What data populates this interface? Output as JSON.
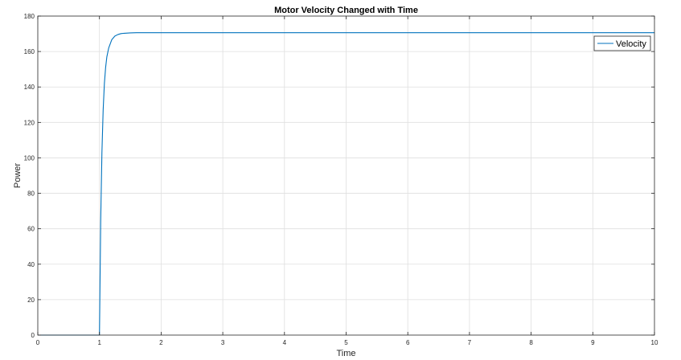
{
  "chart_data": {
    "type": "line",
    "title": "Motor Velocity Changed with Time",
    "xlabel": "Time",
    "ylabel": "Power",
    "xlim": [
      0,
      10
    ],
    "ylim": [
      0,
      180
    ],
    "xticks": [
      0,
      1,
      2,
      3,
      4,
      5,
      6,
      7,
      8,
      9,
      10
    ],
    "yticks": [
      0,
      20,
      40,
      60,
      80,
      100,
      120,
      140,
      160,
      180
    ],
    "grid": true,
    "legend_position": "top-right",
    "series": [
      {
        "name": "Velocity",
        "color": "#0072BD",
        "x": [
          0,
          1,
          1.02,
          1.04,
          1.06,
          1.08,
          1.1,
          1.12,
          1.15,
          1.2,
          1.25,
          1.3,
          1.35,
          1.4,
          1.5,
          1.6,
          1.8,
          2,
          3,
          4,
          5,
          6,
          7,
          8,
          9,
          10
        ],
        "y": [
          0,
          0,
          64,
          103,
          127,
          142,
          151,
          157,
          162,
          166.7,
          168.7,
          169.6,
          170.1,
          170.3,
          170.5,
          170.6,
          170.6,
          170.6,
          170.6,
          170.6,
          170.6,
          170.6,
          170.6,
          170.6,
          170.6,
          170.6
        ]
      }
    ]
  }
}
